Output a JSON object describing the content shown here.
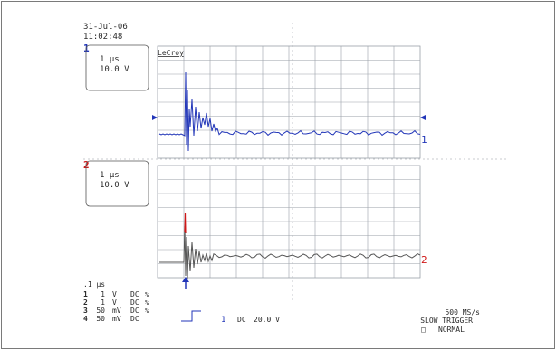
{
  "header": {
    "date": "31-Jul-06",
    "time": "11:02:48"
  },
  "brand": "LeCroy",
  "channels": [
    {
      "id": "1",
      "timebase": "1 µs",
      "volts": "10.0 V",
      "color": "#2236b8"
    },
    {
      "id": "2",
      "timebase": "1 µs",
      "volts": "10.0 V",
      "color": "#d01818"
    }
  ],
  "timebase_footer": ".1 µs",
  "settings": [
    {
      "ch": "1",
      "value": "1",
      "unit": "V",
      "coupling": "DC",
      "mark": "%"
    },
    {
      "ch": "2",
      "value": "1",
      "unit": "V",
      "coupling": "DC",
      "mark": "%"
    },
    {
      "ch": "3",
      "value": "50",
      "unit": "mV",
      "coupling": "DC",
      "mark": "%"
    },
    {
      "ch": "4",
      "value": "50",
      "unit": "mV",
      "coupling": "DC",
      "mark": ""
    }
  ],
  "trigger": {
    "source": "1",
    "coupling": "DC",
    "level": "20.0 V",
    "rate": "500 MS/s",
    "mode": "SLOW TRIGGER",
    "state": "NORMAL",
    "box": "□"
  },
  "grid": {
    "color": "#9aa0a8"
  }
}
